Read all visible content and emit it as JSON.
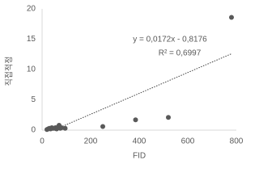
{
  "chart_data": {
    "type": "scatter",
    "xlabel": "FID",
    "ylabel": "직접적정",
    "x": [
      20,
      25,
      30,
      35,
      40,
      45,
      50,
      55,
      60,
      65,
      70,
      75,
      80,
      95,
      250,
      385,
      520,
      780
    ],
    "values": [
      0.1,
      0.2,
      0.3,
      0.2,
      0.4,
      0.3,
      0.3,
      0.4,
      0.2,
      0.5,
      0.8,
      0.3,
      0.4,
      0.3,
      0.6,
      1.7,
      2.1,
      18.6
    ],
    "color": "#595959",
    "trendline": {
      "slope": 0.0172,
      "intercept": -0.8176,
      "color": "#404040"
    },
    "annotations": [
      "y = 0,0172x - 0,8176",
      "R² = 0,6997"
    ],
    "xlim": [
      0,
      800
    ],
    "xticks": [
      0,
      200,
      400,
      600,
      800
    ],
    "ylim": [
      0,
      20
    ],
    "yticks": [
      0,
      5,
      10,
      15,
      20
    ],
    "grid": false
  }
}
